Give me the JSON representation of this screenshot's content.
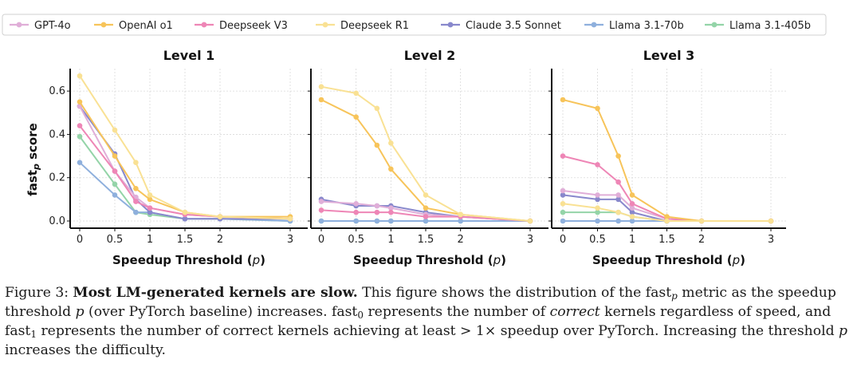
{
  "chart_data": {
    "type": "line",
    "legend": {
      "placement": "top",
      "entries": [
        {
          "name": "GPT-4o",
          "color": "#e0aed8"
        },
        {
          "name": "OpenAI o1",
          "color": "#f7c45a"
        },
        {
          "name": "Deepseek V3",
          "color": "#ee86b6"
        },
        {
          "name": "Deepseek R1",
          "color": "#f9e194"
        },
        {
          "name": "Claude 3.5 Sonnet",
          "color": "#8888cc"
        },
        {
          "name": "Llama 3.1-70b",
          "color": "#8fb0dd"
        },
        {
          "name": "Llama 3.1-405b",
          "color": "#94d4a8"
        }
      ]
    },
    "x": [
      0,
      0.5,
      0.8,
      1,
      1.5,
      2,
      3
    ],
    "xticks": [
      "0",
      "0.5",
      "1",
      "1.5",
      "2",
      "3"
    ],
    "xtick_values": [
      0,
      0.5,
      1,
      1.5,
      2,
      3
    ],
    "xlim": [
      0,
      3
    ],
    "xlabel": "Speedup Threshold (p)",
    "ylim": [
      0,
      0.7
    ],
    "yticks": [
      "0.0",
      "0.2",
      "0.4",
      "0.6"
    ],
    "ytick_values": [
      0,
      0.2,
      0.4,
      0.6
    ],
    "ylabel": "fastp score",
    "grid": true,
    "panels": [
      {
        "title": "Level 1",
        "series": [
          {
            "name": "GPT-4o",
            "values": [
              0.53,
              0.23,
              0.11,
              0.06,
              0.03,
              0.02,
              0.01
            ]
          },
          {
            "name": "OpenAI o1",
            "values": [
              0.55,
              0.3,
              0.15,
              0.1,
              0.04,
              0.02,
              0.02
            ]
          },
          {
            "name": "Deepseek V3",
            "values": [
              0.44,
              0.23,
              0.09,
              0.06,
              0.03,
              0.02,
              0.01
            ]
          },
          {
            "name": "Deepseek R1",
            "values": [
              0.67,
              0.42,
              0.27,
              0.12,
              0.04,
              0.02,
              0.01
            ]
          },
          {
            "name": "Claude 3.5 Sonnet",
            "values": [
              0.53,
              0.31,
              0.1,
              0.04,
              0.01,
              0.01,
              0.01
            ]
          },
          {
            "name": "Llama 3.1-70b",
            "values": [
              0.27,
              0.12,
              0.04,
              0.04,
              0.01,
              0.01,
              0
            ]
          },
          {
            "name": "Llama 3.1-405b",
            "values": [
              0.39,
              0.17,
              0.04,
              0.03,
              0.01,
              0.01,
              0
            ]
          }
        ]
      },
      {
        "title": "Level 2",
        "series": [
          {
            "name": "GPT-4o",
            "values": [
              0.09,
              0.08,
              0.07,
              0.06,
              0.03,
              0.02,
              0
            ]
          },
          {
            "name": "OpenAI o1",
            "values": [
              0.56,
              0.48,
              0.35,
              0.24,
              0.06,
              0.03,
              0
            ]
          },
          {
            "name": "Deepseek V3",
            "values": [
              0.05,
              0.04,
              0.04,
              0.04,
              0.02,
              0.02,
              0
            ]
          },
          {
            "name": "Deepseek R1",
            "values": [
              0.62,
              0.59,
              0.52,
              0.36,
              0.12,
              0.03,
              0
            ]
          },
          {
            "name": "Claude 3.5 Sonnet",
            "values": [
              0.1,
              0.07,
              0.07,
              0.07,
              0.04,
              0.02,
              0
            ]
          },
          {
            "name": "Llama 3.1-70b",
            "values": [
              0,
              0,
              0,
              0,
              0,
              0,
              0
            ]
          },
          {
            "name": "Llama 3.1-405b",
            "values": [
              0,
              0,
              0,
              0,
              0,
              0,
              0
            ]
          }
        ]
      },
      {
        "title": "Level 3",
        "series": [
          {
            "name": "GPT-4o",
            "values": [
              0.14,
              0.12,
              0.12,
              0.06,
              0.01,
              0,
              0
            ]
          },
          {
            "name": "OpenAI o1",
            "values": [
              0.56,
              0.52,
              0.3,
              0.12,
              0.02,
              0,
              0
            ]
          },
          {
            "name": "Deepseek V3",
            "values": [
              0.3,
              0.26,
              0.18,
              0.08,
              0.01,
              0,
              0
            ]
          },
          {
            "name": "Deepseek R1",
            "values": [
              0.08,
              0.06,
              0.04,
              0.02,
              0,
              0,
              0
            ]
          },
          {
            "name": "Claude 3.5 Sonnet",
            "values": [
              0.12,
              0.1,
              0.1,
              0.04,
              0,
              0,
              0
            ]
          },
          {
            "name": "Llama 3.1-70b",
            "values": [
              0,
              0,
              0,
              0,
              0,
              0,
              0
            ]
          },
          {
            "name": "Llama 3.1-405b",
            "values": [
              0.04,
              0.04,
              0.04,
              0.02,
              0,
              0,
              0
            ]
          }
        ]
      }
    ]
  },
  "caption": {
    "label": "Figure 3:",
    "bold_title": "Most LM-generated kernels are slow.",
    "part1": " This figure shows the distribution of the fast",
    "sub_p": "p",
    "part2": " metric as the speedup threshold ",
    "p_var": "p",
    "part3": " (over PyTorch baseline) increases. fast",
    "sub_0": "0",
    "part4": " represents the number of ",
    "italic_correct": "correct",
    "part5": " kernels regardless of speed, and fast",
    "sub_1": "1",
    "part6": " represents the number of correct kernels achieving at least > 1× speedup over PyTorch. Increasing the threshold ",
    "p_var2": "p",
    "part7": " increases the difficulty."
  }
}
